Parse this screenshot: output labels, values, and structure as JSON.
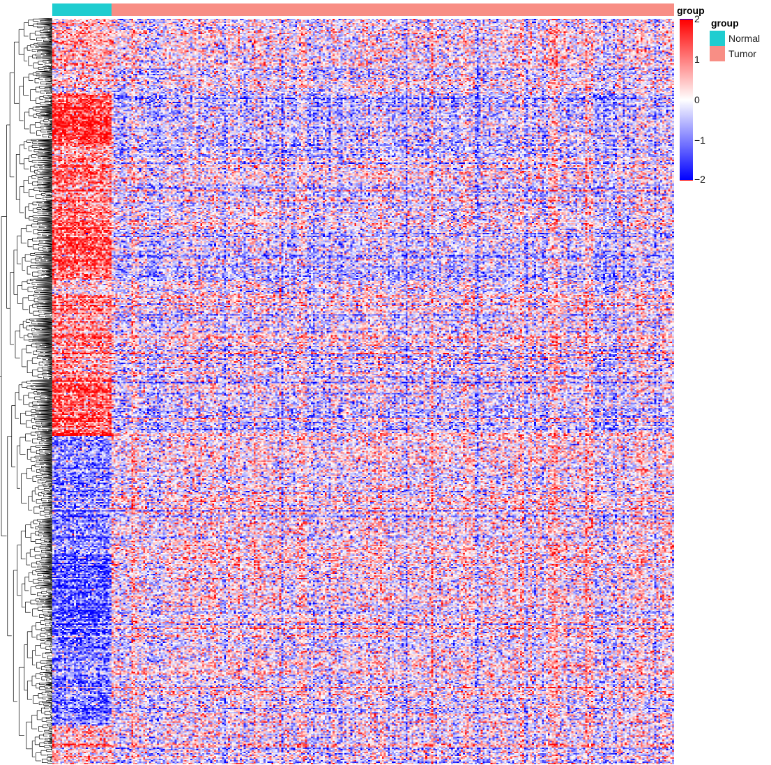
{
  "chart_data": {
    "type": "heatmap",
    "title": "",
    "column_annotation": {
      "title": "group",
      "groups": [
        {
          "name": "Normal",
          "color": "#1FCDD0",
          "n_columns": 30
        },
        {
          "name": "Tumor",
          "color": "#F88E85",
          "n_columns": 285
        }
      ]
    },
    "colorbar": {
      "range": [
        -2,
        2
      ],
      "ticks": [
        {
          "label": "2",
          "value": 2
        },
        {
          "label": "1",
          "value": 1
        },
        {
          "label": "0",
          "value": 0
        },
        {
          "label": "−1",
          "value": -1
        },
        {
          "label": "−2",
          "value": -2
        }
      ],
      "low_color": "#0000FF",
      "mid_color": "#FFFFFF",
      "high_color": "#FF0000"
    },
    "row_dendrogram": true,
    "row_clusters": [
      {
        "label": "",
        "normal_mean": 0.5,
        "tumor_mean": 0.0,
        "weight": 0.09
      },
      {
        "label": "",
        "normal_mean": -0.2,
        "tumor_mean": -0.2,
        "weight": 0.01
      },
      {
        "label": "",
        "normal_mean": 1.6,
        "tumor_mean": -0.3,
        "weight": 0.07
      },
      {
        "label": "",
        "normal_mean": 0.9,
        "tumor_mean": -0.1,
        "weight": 0.11
      },
      {
        "label": "",
        "normal_mean": 1.3,
        "tumor_mean": -0.3,
        "weight": 0.07
      },
      {
        "label": "",
        "normal_mean": 0.2,
        "tumor_mean": -0.1,
        "weight": 0.02
      },
      {
        "label": "",
        "normal_mean": 0.8,
        "tumor_mean": 0.0,
        "weight": 0.11
      },
      {
        "label": "",
        "normal_mean": 1.2,
        "tumor_mean": -0.3,
        "weight": 0.08
      },
      {
        "label": "",
        "normal_mean": -0.9,
        "tumor_mean": 0.1,
        "weight": 0.16
      },
      {
        "label": "",
        "normal_mean": -1.3,
        "tumor_mean": 0.1,
        "weight": 0.11
      },
      {
        "label": "",
        "normal_mean": -0.9,
        "tumor_mean": 0.1,
        "weight": 0.12
      },
      {
        "label": "",
        "normal_mean": 0.5,
        "tumor_mean": 0.0,
        "weight": 0.05
      }
    ]
  }
}
